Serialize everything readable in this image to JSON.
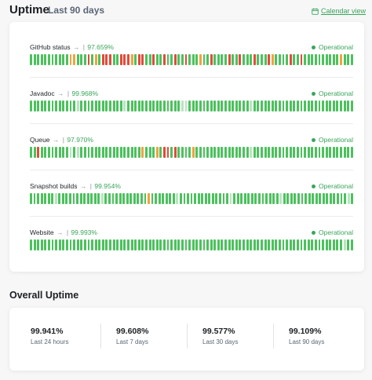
{
  "header": {
    "title": "Uptime",
    "subtitle": "Last 90 days",
    "calendar_label": "Calendar view"
  },
  "colors": {
    "operational": "#3ba55c",
    "bar_green": "#4cc15d",
    "bar_light": "#b9e5bf",
    "bar_orange": "#f0a240",
    "bar_red": "#e04c3c"
  },
  "components": [
    {
      "name": "GitHub status",
      "arrow": "→",
      "sep": "|",
      "uptime": "97.659%",
      "status": "Operational",
      "days": "GGGGGGGGGGGOOGGGRGOGRRRGGRRROGRRGGRGGRGGRGGRGGGOGGRGGGGRGGRGGGRGGGROGGGGRGGRGGGGGGGGGGOGGG"
    },
    {
      "name": "Javadoc",
      "arrow": "→",
      "sep": "|",
      "uptime": "99.968%",
      "status": "Operational",
      "days": "GGGGGGGGGGGGGLGGGGGGGGGGGGLGGGGGGGGGGGGGGGLLGGGGGGGGGGGGGGGGGLGGGGGGGGGGGGGGGGGGGGGGGGGGGG"
    },
    {
      "name": "Queue",
      "arrow": "→",
      "sep": "|",
      "uptime": "97.970%",
      "status": "Operational",
      "days": "GGRGGGGGGGGLGLGGGGGGGGGGGGGGGGGOGGGOGRRGRGGGGOGGGGGGGGGGGGGGGLGGGGGGGGGGGGGGGGGGGGGGGGGGGG"
    },
    {
      "name": "Snapshot builds",
      "arrow": "→",
      "sep": "|",
      "uptime": "99.954%",
      "status": "Operational",
      "days": "GGGGGGGLGGGGGGGGGGGGLGGGGGGGGGGGGOGGGGGGGLGGGGGGGGGGGGGGLGGGGGGGGGGGGGLGGGGGGGGGGGGGGGGGGLG"
    },
    {
      "name": "Website",
      "arrow": "→",
      "sep": "|",
      "uptime": "99.993%",
      "status": "Operational",
      "days": "GGGGGGGGGGGGGGGGGGGGGGGGGGGGGGGGGGGGGGGGGGGGGGGGGGGGGGGGGGGGGGGGGGGGGGGGGGGGGGGGGGGGGGGLGG"
    }
  ],
  "overall": {
    "title": "Overall Uptime",
    "stats": [
      {
        "value": "99.941%",
        "label": "Last 24 hours"
      },
      {
        "value": "99.608%",
        "label": "Last 7 days"
      },
      {
        "value": "99.577%",
        "label": "Last 30 days"
      },
      {
        "value": "99.109%",
        "label": "Last 90 days"
      }
    ]
  }
}
